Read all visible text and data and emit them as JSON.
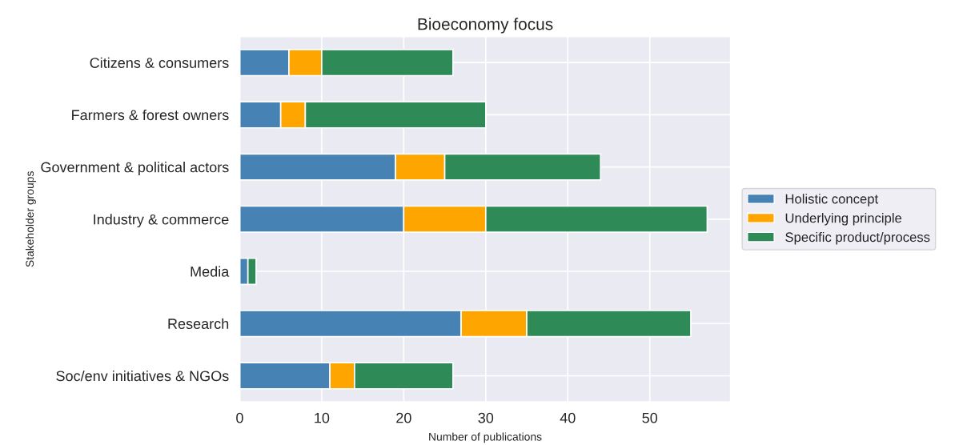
{
  "chart_data": {
    "type": "bar",
    "orientation": "horizontal",
    "stacked": true,
    "title": "Bioeconomy focus",
    "xlabel": "Number of publications",
    "ylabel": "Stakeholder groups",
    "categories": [
      "Citizens & consumers",
      "Farmers & forest owners",
      "Government & political actors",
      "Industry & commerce",
      "Media",
      "Research",
      "Soc/env initiatives & NGOs"
    ],
    "series": [
      {
        "name": "Holistic concept",
        "color": "#4682b4",
        "values": [
          6,
          5,
          19,
          20,
          1,
          27,
          11
        ]
      },
      {
        "name": "Underlying principle",
        "color": "#ffa500",
        "values": [
          4,
          3,
          6,
          10,
          0,
          8,
          3
        ]
      },
      {
        "name": "Specific product/process",
        "color": "#2e8b57",
        "values": [
          16,
          22,
          19,
          27,
          1,
          20,
          12
        ]
      }
    ],
    "xlim": [
      0,
      59.85
    ],
    "xticks": [
      0,
      10,
      20,
      30,
      40,
      50
    ],
    "grid": true,
    "legend": "right"
  }
}
